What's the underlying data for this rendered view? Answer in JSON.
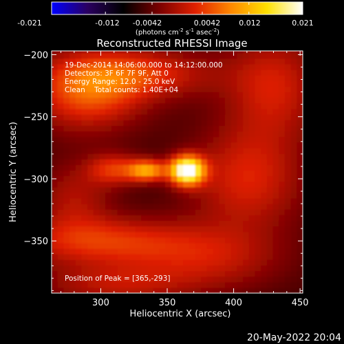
{
  "colorbar": {
    "ticks": [
      "-0.021",
      "-0.012",
      "-0.0042",
      "0.0042",
      "0.012",
      "0.021"
    ],
    "tick_values": [
      -0.021,
      -0.012,
      -0.0042,
      0.0042,
      0.012,
      0.021
    ],
    "range": [
      -0.021,
      0.021
    ],
    "units_prefix": "(photons cm",
    "units_exp1": "-2",
    "units_mid": " s",
    "units_exp2": "-1",
    "units_mid2": " asec",
    "units_exp3": "-2",
    "units_suffix": ")",
    "stops": [
      "#0000ff",
      "#2a0060",
      "#000000",
      "#7a0000",
      "#e02000",
      "#ff8800",
      "#ffe000",
      "#ffffff"
    ]
  },
  "chart_data": {
    "type": "heatmap",
    "title": "Reconstructed RHESSI Image",
    "xlabel": "Heliocentric X (arcsec)",
    "ylabel": "Heliocentric Y (arcsec)",
    "xlim": [
      263,
      452
    ],
    "ylim": [
      -392,
      -197
    ],
    "xticks": [
      300,
      350,
      400,
      450
    ],
    "xtick_labels": [
      "300",
      "350",
      "400",
      "450"
    ],
    "yticks": [
      -200,
      -250,
      -300,
      -350
    ],
    "ytick_labels": [
      "−200",
      "−250",
      "−300",
      "−350"
    ],
    "annotations": [
      "19-Dec-2014 14:06:00.000 to 14:12:00.000",
      "Detectors: 3F 6F 7F 9F, Att 0",
      "Energy Range: 12.0 - 25.0 keV",
      "Clean    Total counts: 1.40E+04"
    ],
    "peak_label": "Position of Peak = [365,-293]",
    "peak": [
      365,
      -293
    ],
    "sources": [
      {
        "x": 365,
        "y": -293,
        "sx": 9,
        "sy": 8,
        "amp": 1.0
      },
      {
        "x": 335,
        "y": -293,
        "sx": 10,
        "sy": 6,
        "amp": 0.55
      },
      {
        "x": 310,
        "y": -292,
        "sx": 14,
        "sy": 9,
        "amp": 0.32
      },
      {
        "x": 290,
        "y": -230,
        "sx": 30,
        "sy": 22,
        "amp": 0.4
      },
      {
        "x": 330,
        "y": -215,
        "sx": 40,
        "sy": 14,
        "amp": 0.3
      },
      {
        "x": 430,
        "y": -225,
        "sx": 25,
        "sy": 30,
        "amp": 0.28
      },
      {
        "x": 410,
        "y": -300,
        "sx": 30,
        "sy": 30,
        "amp": 0.3
      },
      {
        "x": 300,
        "y": -350,
        "sx": 50,
        "sy": 14,
        "amp": 0.33
      },
      {
        "x": 380,
        "y": -365,
        "sx": 40,
        "sy": 18,
        "amp": 0.22
      },
      {
        "x": 310,
        "y": -385,
        "sx": 40,
        "sy": 12,
        "amp": 0.22
      },
      {
        "x": 280,
        "y": -315,
        "sx": 20,
        "sy": 20,
        "amp": 0.2
      }
    ],
    "base_level": 0.05
  },
  "footer": {
    "date": "20-May-2022 20:04"
  }
}
